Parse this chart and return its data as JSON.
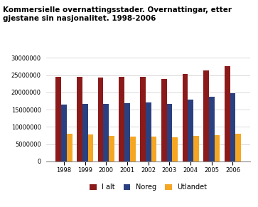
{
  "title_line1": "Kommersielle overnattingsstader. Overnattingar, etter",
  "title_line2": "gjestane sin nasjonalitet. 1998-2006",
  "years": [
    1998,
    1999,
    2000,
    2001,
    2002,
    2003,
    2004,
    2005,
    2006
  ],
  "i_alt": [
    24500000,
    24600000,
    24400000,
    24500000,
    24500000,
    23900000,
    25400000,
    26300000,
    27700000
  ],
  "noreg": [
    16500000,
    16600000,
    16700000,
    17000000,
    17100000,
    16800000,
    17900000,
    18800000,
    19700000
  ],
  "utlandet": [
    8000000,
    7900000,
    7500000,
    7300000,
    7300000,
    7000000,
    7500000,
    7700000,
    8000000
  ],
  "colors": {
    "i_alt": "#8B1A1A",
    "noreg": "#2B4080",
    "utlandet": "#F5A623"
  },
  "legend_labels": [
    "I alt",
    "Noreg",
    "Utlandet"
  ],
  "ylim": [
    0,
    30000000
  ],
  "yticks": [
    0,
    5000000,
    10000000,
    15000000,
    20000000,
    25000000,
    30000000
  ],
  "background_color": "#ffffff",
  "grid_color": "#cccccc",
  "title_fontsize": 7.5,
  "tick_fontsize": 6.0,
  "legend_fontsize": 7.0,
  "bar_width": 0.26
}
